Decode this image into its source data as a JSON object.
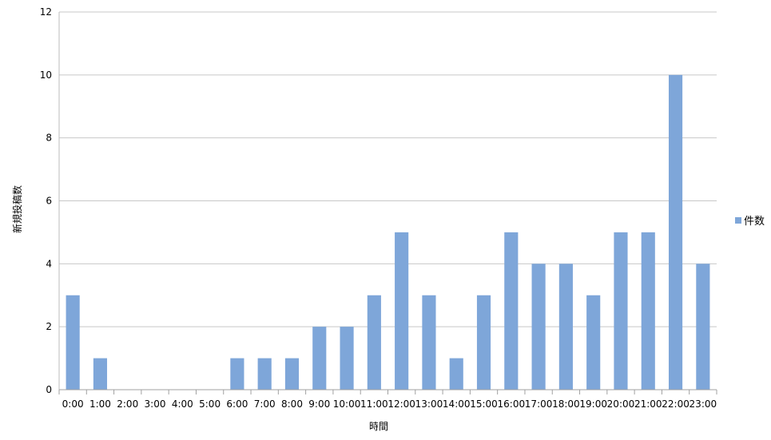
{
  "chart_data": {
    "type": "bar",
    "categories": [
      "0:00",
      "1:00",
      "2:00",
      "3:00",
      "4:00",
      "5:00",
      "6:00",
      "7:00",
      "8:00",
      "9:00",
      "10:00",
      "11:00",
      "12:00",
      "13:00",
      "14:00",
      "15:00",
      "16:00",
      "17:00",
      "18:00",
      "19:00",
      "20:00",
      "21:00",
      "22:00",
      "23:00"
    ],
    "series": [
      {
        "name": "件数",
        "values": [
          3,
          1,
          0,
          0,
          0,
          0,
          1,
          1,
          1,
          2,
          2,
          3,
          5,
          3,
          1,
          3,
          5,
          4,
          4,
          3,
          5,
          5,
          10,
          4
        ],
        "color": "#7ea6d9"
      }
    ],
    "title": "",
    "xlabel": "時間",
    "ylabel": "新規投稿数",
    "ylim": [
      0,
      12
    ],
    "yticks": [
      0,
      2,
      4,
      6,
      8,
      10,
      12
    ],
    "grid": true,
    "legend": "right"
  }
}
